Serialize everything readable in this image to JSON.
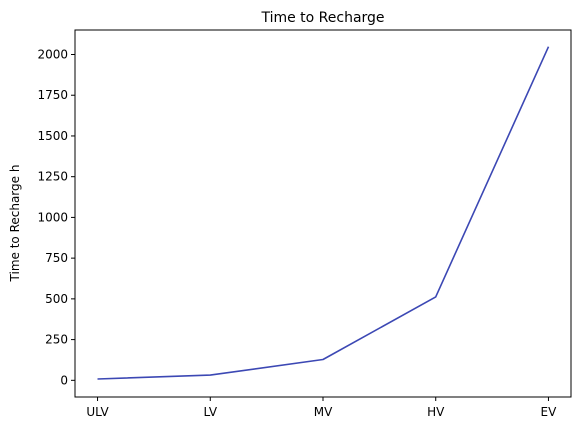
{
  "chart_data": {
    "type": "line",
    "title": "Time to Recharge",
    "xlabel": "",
    "ylabel": "Time to Recharge h",
    "categories": [
      "ULV",
      "LV",
      "MV",
      "HV",
      "EV"
    ],
    "series": [
      {
        "values": [
          8,
          32,
          128,
          512,
          2048
        ],
        "color": "#3c48b4"
      }
    ],
    "ylim": [
      -102.4,
      2150.4
    ],
    "yticks": [
      0,
      250,
      500,
      750,
      1000,
      1250,
      1500,
      1750,
      2000
    ],
    "grid": false,
    "legend": "none"
  }
}
